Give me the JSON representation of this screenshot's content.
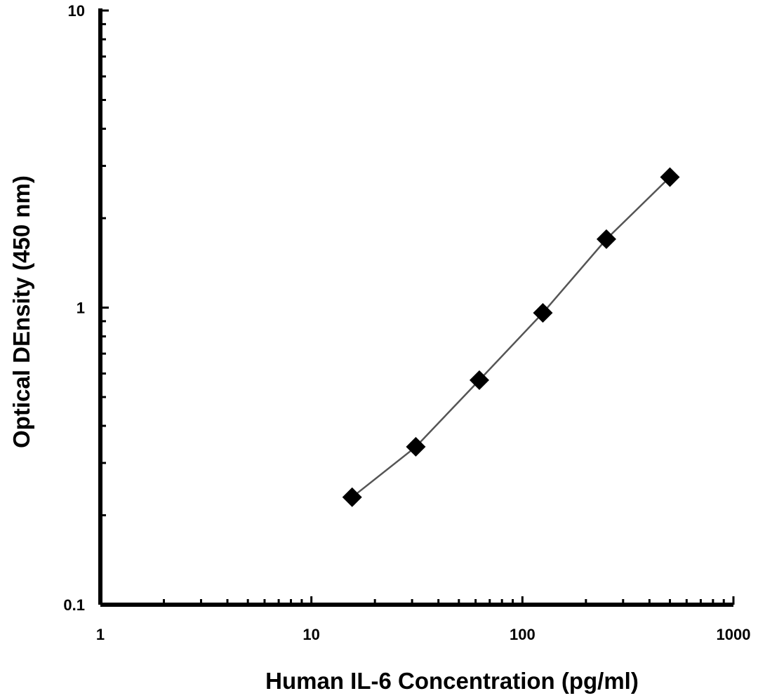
{
  "chart_data": {
    "type": "scatter",
    "title": "",
    "xlabel": "Human IL-6 Concentration (pg/ml)",
    "ylabel": "Optical DEnsity (450 nm)",
    "x_scale": "log",
    "y_scale": "log",
    "xlim": [
      1,
      1000
    ],
    "ylim": [
      0.1,
      10
    ],
    "x_ticks": [
      1,
      10,
      100,
      1000
    ],
    "x_tick_labels": [
      "1",
      "10",
      "100",
      "1000"
    ],
    "y_ticks": [
      0.1,
      1,
      10
    ],
    "y_tick_labels": [
      "0.1",
      "1",
      "10"
    ],
    "grid": false,
    "marker": "diamond",
    "marker_color": "#000000",
    "line_color": "#555555",
    "series": [
      {
        "x": [
          15.6,
          31.25,
          62.5,
          125,
          250,
          500
        ],
        "y": [
          0.23,
          0.34,
          0.57,
          0.96,
          1.7,
          2.75
        ],
        "connected": true
      }
    ]
  }
}
